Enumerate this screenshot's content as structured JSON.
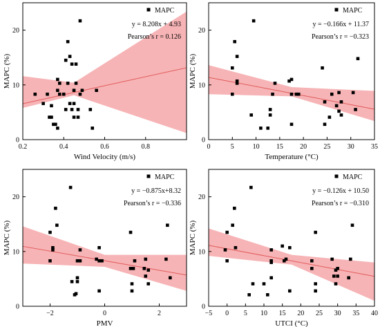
{
  "chart_data": [
    {
      "type": "scatter",
      "xlabel": "Wind Velocity (m/s)",
      "ylabel": "MAPC (%)",
      "xlim": [
        0.2,
        1.0
      ],
      "ylim": [
        0,
        25
      ],
      "xticks": [
        "0.2",
        "0.4",
        "0.6",
        "0.8"
      ],
      "yticks": [
        "0",
        "10",
        "20"
      ],
      "legend": "MAPC",
      "legend_position": "top-right",
      "equation": "y = 8.208x + 4.93",
      "pearson": "Pearson’s r = 0.126",
      "fit": {
        "slope": 8.208,
        "intercept": 4.93
      },
      "band": {
        "x": [
          0.2,
          0.45,
          1.0
        ],
        "lower": [
          5.8,
          8.1,
          1.2
        ],
        "upper": [
          11.6,
          10.4,
          23.4
        ]
      },
      "points": [
        [
          0.26,
          8.3
        ],
        [
          0.3,
          6.6
        ],
        [
          0.32,
          8.3
        ],
        [
          0.33,
          4.1
        ],
        [
          0.34,
          4.1
        ],
        [
          0.34,
          6.2
        ],
        [
          0.35,
          2.8
        ],
        [
          0.36,
          2.8
        ],
        [
          0.37,
          2.1
        ],
        [
          0.37,
          9.0
        ],
        [
          0.37,
          11.0
        ],
        [
          0.38,
          10.3
        ],
        [
          0.38,
          8.3
        ],
        [
          0.4,
          8.3
        ],
        [
          0.41,
          5.5
        ],
        [
          0.41,
          14.5
        ],
        [
          0.42,
          17.9
        ],
        [
          0.42,
          10.3
        ],
        [
          0.43,
          15.2
        ],
        [
          0.43,
          6.6
        ],
        [
          0.44,
          5.5
        ],
        [
          0.44,
          13.8
        ],
        [
          0.45,
          4.1
        ],
        [
          0.45,
          6.6
        ],
        [
          0.45,
          9.0
        ],
        [
          0.46,
          13.8
        ],
        [
          0.46,
          10.3
        ],
        [
          0.47,
          5.5
        ],
        [
          0.47,
          4.1
        ],
        [
          0.48,
          21.7
        ],
        [
          0.48,
          8.3
        ],
        [
          0.49,
          9.0
        ],
        [
          0.53,
          5.5
        ],
        [
          0.54,
          2.1
        ],
        [
          0.56,
          9.0
        ]
      ]
    },
    {
      "type": "scatter",
      "xlabel": "Temperature (°C)",
      "ylabel": "MAPC (%)",
      "xlim": [
        0,
        35
      ],
      "ylim": [
        0,
        25
      ],
      "xticks": [
        "0",
        "5",
        "10",
        "15",
        "20",
        "25",
        "30",
        "35"
      ],
      "yticks": [
        "0",
        "10",
        "20"
      ],
      "legend": "MAPC",
      "legend_position": "top-right",
      "equation": "y = −0.166x + 11.37",
      "pearson": "Pearson’s r = −0.323",
      "fit": {
        "slope": -0.166,
        "intercept": 11.37
      },
      "band": {
        "x": [
          0,
          17.5,
          35
        ],
        "lower": [
          8.3,
          7.9,
          3.4
        ],
        "upper": [
          13.6,
          9.6,
          8.9
        ]
      },
      "points": [
        [
          5,
          8.3
        ],
        [
          5,
          13.1
        ],
        [
          5.5,
          17.9
        ],
        [
          6,
          15.2
        ],
        [
          6,
          10.3
        ],
        [
          6,
          10.7
        ],
        [
          9,
          4.5
        ],
        [
          9.5,
          21.7
        ],
        [
          11,
          2.1
        ],
        [
          12.5,
          2.1
        ],
        [
          13,
          4.5
        ],
        [
          13,
          5.5
        ],
        [
          13.5,
          8.3
        ],
        [
          14,
          10.3
        ],
        [
          17,
          10.7
        ],
        [
          17.5,
          11.0
        ],
        [
          17.5,
          2.8
        ],
        [
          17.5,
          8.3
        ],
        [
          18.5,
          8.3
        ],
        [
          19,
          8.3
        ],
        [
          24,
          13.1
        ],
        [
          24.5,
          2.8
        ],
        [
          24.5,
          6.9
        ],
        [
          25.5,
          4.1
        ],
        [
          26,
          8.3
        ],
        [
          27,
          6.2
        ],
        [
          27.5,
          8.6
        ],
        [
          27.5,
          5.2
        ],
        [
          28,
          4.5
        ],
        [
          28,
          6.9
        ],
        [
          30.5,
          8.6
        ],
        [
          31,
          5.5
        ],
        [
          31.5,
          14.8
        ]
      ]
    },
    {
      "type": "scatter",
      "xlabel": "PMV",
      "ylabel": "MAPC (%)",
      "xlim": [
        -3,
        3
      ],
      "ylim": [
        0,
        25
      ],
      "xticks": [
        "−2",
        "0",
        "2"
      ],
      "yticks": [
        "0",
        "10",
        "20"
      ],
      "legend": "MAPC",
      "legend_position": "top-right",
      "equation": "y = −0.875x+8.32",
      "pearson": "Pearson’s r = −0.336",
      "fit": {
        "slope": -0.875,
        "intercept": 8.32
      },
      "band": {
        "x": [
          -3,
          0,
          3
        ],
        "lower": [
          7.8,
          7.2,
          2.8
        ],
        "upper": [
          14.6,
          9.4,
          9.4
        ]
      },
      "points": [
        [
          -2,
          8.3
        ],
        [
          -2,
          13.5
        ],
        [
          -1.9,
          10.3
        ],
        [
          -1.9,
          10.7
        ],
        [
          -1.8,
          17.9
        ],
        [
          -1.75,
          14.8
        ],
        [
          -1.25,
          21.7
        ],
        [
          -1.2,
          4.5
        ],
        [
          -1.1,
          2.1
        ],
        [
          -1.05,
          2.3
        ],
        [
          -1.0,
          8.3
        ],
        [
          -1.0,
          4.5
        ],
        [
          -1.0,
          5.2
        ],
        [
          -0.9,
          8.3
        ],
        [
          -0.9,
          10.3
        ],
        [
          -0.3,
          8.6
        ],
        [
          -0.2,
          10.7
        ],
        [
          -0.2,
          8.3
        ],
        [
          -0.2,
          2.8
        ],
        [
          -0.1,
          8.3
        ],
        [
          0.95,
          13.5
        ],
        [
          0.95,
          6.9
        ],
        [
          1.0,
          4.1
        ],
        [
          1.0,
          2.8
        ],
        [
          1.05,
          6.9
        ],
        [
          1.1,
          8.3
        ],
        [
          1.45,
          6.9
        ],
        [
          1.5,
          5.5
        ],
        [
          1.5,
          8.6
        ],
        [
          1.6,
          6.6
        ],
        [
          1.6,
          4.1
        ],
        [
          2.25,
          8.6
        ],
        [
          2.3,
          14.8
        ],
        [
          2.4,
          5.2
        ]
      ]
    },
    {
      "type": "scatter",
      "xlabel": "UTCI (°C)",
      "ylabel": "MAPC (%)",
      "xlim": [
        -5,
        40
      ],
      "ylim": [
        0,
        25
      ],
      "xticks": [
        "−5",
        "0",
        "5",
        "10",
        "15",
        "20",
        "25",
        "30",
        "35",
        "40"
      ],
      "yticks": [
        "0",
        "10",
        "20"
      ],
      "legend": "MAPC",
      "legend_position": "top-right",
      "equation": "y = −0.126x + 10.50",
      "pearson": "Pearson’s r = −0.310",
      "fit": {
        "slope": -0.126,
        "intercept": 10.5
      },
      "band": {
        "x": [
          -5,
          17.5,
          40
        ],
        "lower": [
          9.2,
          7.6,
          1.0
        ],
        "upper": [
          14.2,
          9.4,
          8.0
        ]
      },
      "points": [
        [
          -0.5,
          10.3
        ],
        [
          0,
          13.5
        ],
        [
          0,
          8.3
        ],
        [
          1.5,
          14.8
        ],
        [
          2,
          17.9
        ],
        [
          2.3,
          10.7
        ],
        [
          6,
          2.1
        ],
        [
          6.5,
          21.7
        ],
        [
          7,
          4.1
        ],
        [
          10,
          4.1
        ],
        [
          11,
          2.1
        ],
        [
          12,
          10.3
        ],
        [
          12,
          8.3
        ],
        [
          12,
          5.2
        ],
        [
          12,
          8.0
        ],
        [
          15,
          11.0
        ],
        [
          15.5,
          8.3
        ],
        [
          16,
          8.6
        ],
        [
          17,
          10.7
        ],
        [
          17,
          2.8
        ],
        [
          23,
          6.9
        ],
        [
          23,
          8.3
        ],
        [
          24,
          13.5
        ],
        [
          24,
          2.8
        ],
        [
          24,
          4.1
        ],
        [
          28.5,
          8.6
        ],
        [
          29,
          5.5
        ],
        [
          29.5,
          6.6
        ],
        [
          29.5,
          4.1
        ],
        [
          30,
          6.9
        ],
        [
          30,
          5.5
        ],
        [
          33,
          5.2
        ],
        [
          33.5,
          8.6
        ],
        [
          34,
          14.8
        ]
      ]
    }
  ]
}
